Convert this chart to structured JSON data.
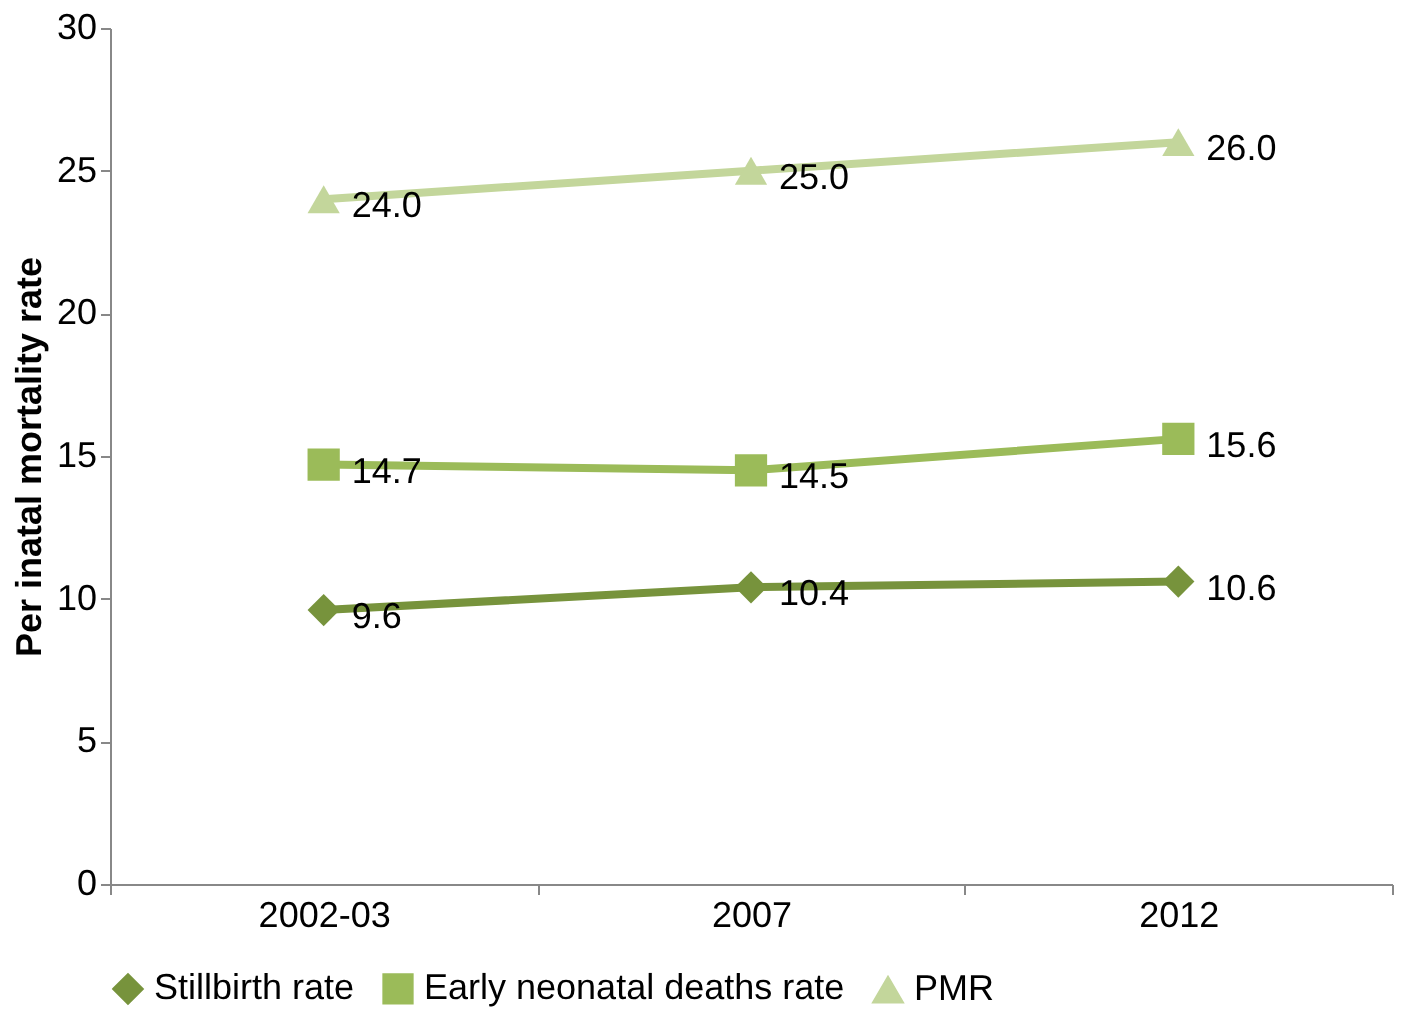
{
  "chart_data": {
    "type": "line",
    "ylabel": "Per inatal mortality rate",
    "categories": [
      "2002-03",
      "2007",
      "2012"
    ],
    "series": [
      {
        "name": "Stillbirth rate",
        "color": "#77933c",
        "marker": "diamond",
        "values": [
          9.6,
          10.4,
          10.6
        ],
        "value_labels": [
          "9.6",
          "10.4",
          "10.6"
        ]
      },
      {
        "name": "Early neonatal deaths rate",
        "color": "#9bbb59",
        "marker": "square",
        "values": [
          14.7,
          14.5,
          15.6
        ],
        "value_labels": [
          "14.7",
          "14.5",
          "15.6"
        ]
      },
      {
        "name": "PMR",
        "color": "#c3d69b",
        "marker": "triangle",
        "values": [
          24.0,
          25.0,
          26.0
        ],
        "value_labels": [
          "24.0",
          "25.0",
          "26.0"
        ]
      }
    ],
    "ylim": [
      0,
      30
    ],
    "yticks": [
      0,
      5,
      10,
      15,
      20,
      25,
      30
    ],
    "grid": false,
    "legend": "bottom",
    "line_style": "solid"
  }
}
